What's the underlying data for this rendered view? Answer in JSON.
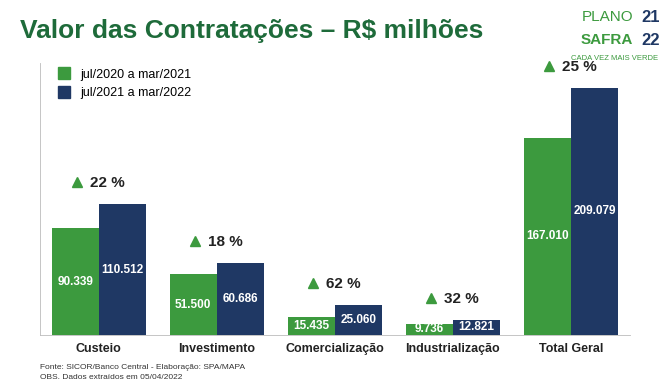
{
  "chart_data": {
    "type": "bar",
    "title": "Valor das Contratações – R$ milhões",
    "categories": [
      "Custeio",
      "Investimento",
      "Comercialização",
      "Industrialização",
      "Total Geral"
    ],
    "series": [
      {
        "name": "jul/2020 a mar/2021",
        "color": "#3c9a3e",
        "values": [
          90339,
          51500,
          15435,
          9736,
          167010
        ],
        "value_labels": [
          "90.339",
          "51.500",
          "15.435",
          "9.736",
          "167.010"
        ]
      },
      {
        "name": "jul/2021 a mar/2022",
        "color": "#1f3864",
        "values": [
          110512,
          60686,
          25060,
          12821,
          209079
        ],
        "value_labels": [
          "110.512",
          "60.686",
          "25.060",
          "12.821",
          "209.079"
        ]
      }
    ],
    "annotations": [
      "22 %",
      "18 %",
      "62 %",
      "32 %",
      "25 %"
    ],
    "ylim": [
      0,
      230000
    ],
    "yticks": [],
    "data_labels": true,
    "tick_labels": "x",
    "legend": "upper left",
    "grid": false,
    "source": [
      "Fonte: SICOR/Banco Central - Elaboração: SPA/MAPA",
      "OBS. Dados extraídos em 05/04/2022"
    ],
    "logo": {
      "line1": "PLANO",
      "year1": "21",
      "line2": "SAFRA",
      "year2": "22",
      "tagline": "CADA VEZ MAIS VERDE"
    }
  }
}
